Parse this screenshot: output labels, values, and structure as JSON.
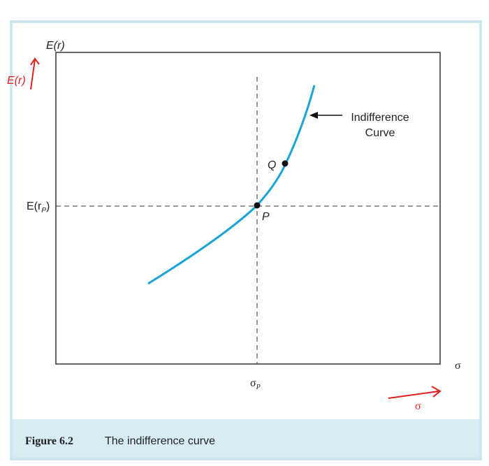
{
  "axes": {
    "y_label": "E(r)",
    "x_label": "σ"
  },
  "reference": {
    "y": {
      "main": "E(r",
      "subscript": "P",
      "tail": ")"
    },
    "x": {
      "main": "σ",
      "subscript": "P"
    }
  },
  "points": {
    "q": "Q",
    "p": "P"
  },
  "curve_label": [
    "Indifference",
    "Curve"
  ],
  "caption": {
    "number": "Figure 6.2",
    "text": "The indifference curve"
  },
  "handwriting": {
    "y": "E(r)",
    "x": "σ"
  }
}
